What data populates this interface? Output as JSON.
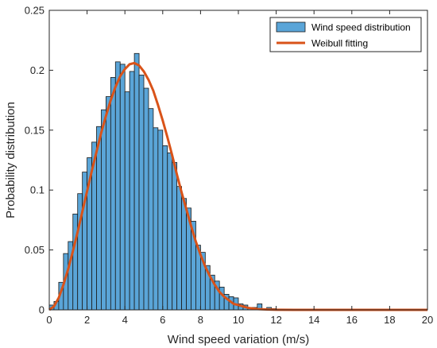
{
  "colors": {
    "bar_fill": "#5AA5D8",
    "bar_edge": "#1a1a1a",
    "fit_line": "#D95319",
    "axis": "#262626"
  },
  "chart_data": {
    "type": "bar",
    "xlabel": "Wind speed variation (m/s)",
    "ylabel": "Probability distribution",
    "xlim": [
      0,
      20
    ],
    "ylim": [
      0,
      0.25
    ],
    "xticks": [
      0,
      2,
      4,
      6,
      8,
      10,
      12,
      14,
      16,
      18,
      20
    ],
    "yticks": [
      0,
      0.05,
      0.1,
      0.15,
      0.2,
      0.25
    ],
    "grid": false,
    "legend_position": "top-right",
    "bin_width": 0.25,
    "series": [
      {
        "name": "Wind speed distribution",
        "type": "histogram",
        "bin_edges_start": 0,
        "values": [
          0.004,
          0.007,
          0.023,
          0.047,
          0.057,
          0.08,
          0.097,
          0.115,
          0.127,
          0.14,
          0.153,
          0.167,
          0.178,
          0.194,
          0.207,
          0.205,
          0.182,
          0.199,
          0.214,
          0.196,
          0.185,
          0.168,
          0.152,
          0.15,
          0.137,
          0.131,
          0.123,
          0.103,
          0.093,
          0.085,
          0.074,
          0.054,
          0.048,
          0.037,
          0.029,
          0.024,
          0.019,
          0.013,
          0.011,
          0.01,
          0.005,
          0.004,
          0.002,
          0.002,
          0.005,
          0.001,
          0.002,
          0.001
        ]
      },
      {
        "name": "Weibull fitting",
        "type": "line",
        "x": [
          0,
          0.25,
          0.5,
          0.75,
          1,
          1.25,
          1.5,
          1.75,
          2,
          2.25,
          2.5,
          2.75,
          3,
          3.25,
          3.5,
          3.75,
          4,
          4.25,
          4.5,
          4.75,
          5,
          5.25,
          5.5,
          5.75,
          6,
          6.25,
          6.5,
          6.75,
          7,
          7.25,
          7.5,
          7.75,
          8,
          8.25,
          8.5,
          8.75,
          9,
          9.25,
          9.5,
          9.75,
          10,
          10.5,
          11,
          11.5,
          12,
          13,
          14,
          16,
          18,
          20
        ],
        "y": [
          0,
          0.003,
          0.01,
          0.021,
          0.034,
          0.049,
          0.065,
          0.082,
          0.099,
          0.116,
          0.132,
          0.148,
          0.162,
          0.175,
          0.186,
          0.195,
          0.201,
          0.205,
          0.206,
          0.204,
          0.199,
          0.192,
          0.183,
          0.171,
          0.158,
          0.144,
          0.129,
          0.113,
          0.098,
          0.084,
          0.07,
          0.057,
          0.046,
          0.036,
          0.028,
          0.021,
          0.015,
          0.011,
          0.008,
          0.005,
          0.004,
          0.0017,
          0.0007,
          0.0003,
          0.0001,
          0,
          0,
          0,
          0,
          0
        ]
      }
    ]
  }
}
